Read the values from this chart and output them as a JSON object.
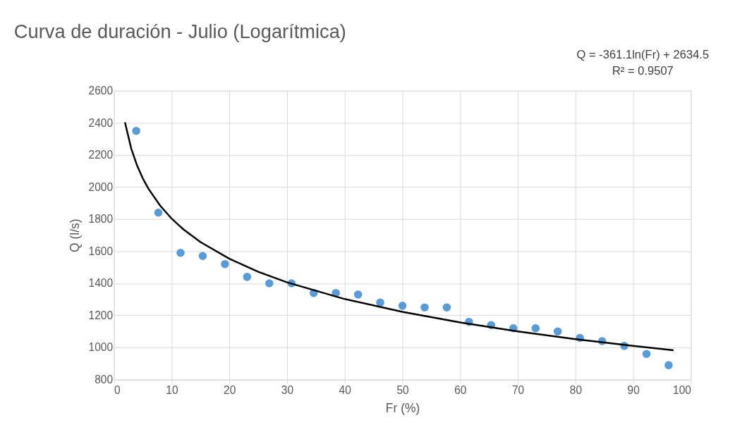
{
  "chart_data": {
    "type": "scatter",
    "title": "Curva de duración - Julio (Logarítmica)",
    "xlabel": "Fr (%)",
    "ylabel": "Q (l/s)",
    "xlim": [
      0,
      100
    ],
    "xticks": [
      0,
      10,
      20,
      30,
      40,
      50,
      60,
      70,
      80,
      90,
      100
    ],
    "ylim": [
      800,
      2600
    ],
    "yticks": [
      800,
      1000,
      1200,
      1400,
      1600,
      1800,
      2000,
      2200,
      2400,
      2600
    ],
    "grid": true,
    "annotations": [
      "Q = -361.1ln(Fr) + 2634.5",
      "R² = 0.9507"
    ],
    "series": [
      {
        "color": "#5b9bd5",
        "marker": "circle",
        "x": [
          3.85,
          7.69,
          11.54,
          15.38,
          19.23,
          23.08,
          26.92,
          30.77,
          34.62,
          38.46,
          42.31,
          46.15,
          50,
          53.85,
          57.69,
          61.54,
          65.38,
          69.23,
          73.08,
          76.92,
          80.77,
          84.62,
          88.46,
          92.31,
          96.15
        ],
        "values": [
          2350,
          1840,
          1590,
          1570,
          1520,
          1440,
          1400,
          1400,
          1340,
          1340,
          1330,
          1280,
          1260,
          1250,
          1250,
          1160,
          1140,
          1120,
          1120,
          1100,
          1060,
          1040,
          1010,
          960,
          890
        ]
      },
      {
        "type": "line",
        "color": "#000000",
        "marker": "none",
        "line_style": "solid",
        "x": [
          1.9,
          3,
          4,
          5,
          6,
          8,
          10,
          12,
          15,
          20,
          25,
          30,
          40,
          50,
          60,
          70,
          80,
          90,
          97
        ],
        "values": [
          2403,
          2238,
          2134,
          2053,
          1988,
          1884,
          1803,
          1737,
          1657,
          1553,
          1472,
          1406,
          1302,
          1222,
          1156,
          1100,
          1052,
          1010,
          983
        ]
      }
    ]
  }
}
